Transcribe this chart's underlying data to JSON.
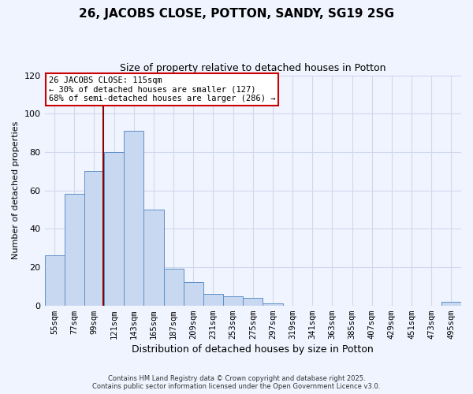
{
  "title": "26, JACOBS CLOSE, POTTON, SANDY, SG19 2SG",
  "subtitle": "Size of property relative to detached houses in Potton",
  "xlabel": "Distribution of detached houses by size in Potton",
  "ylabel": "Number of detached properties",
  "bar_color": "#c8d8f0",
  "bar_edge_color": "#6090c8",
  "categories": [
    "55sqm",
    "77sqm",
    "99sqm",
    "121sqm",
    "143sqm",
    "165sqm",
    "187sqm",
    "209sqm",
    "231sqm",
    "253sqm",
    "275sqm",
    "297sqm",
    "319sqm",
    "341sqm",
    "363sqm",
    "385sqm",
    "407sqm",
    "429sqm",
    "451sqm",
    "473sqm",
    "495sqm"
  ],
  "values": [
    26,
    58,
    70,
    80,
    91,
    50,
    19,
    12,
    6,
    5,
    4,
    1,
    0,
    0,
    0,
    0,
    0,
    0,
    0,
    0,
    2
  ],
  "ylim": [
    0,
    120
  ],
  "yticks": [
    0,
    20,
    40,
    60,
    80,
    100,
    120
  ],
  "vline_x": 2.45,
  "vline_color": "#880000",
  "annotation_title": "26 JACOBS CLOSE: 115sqm",
  "annotation_line1": "← 30% of detached houses are smaller (127)",
  "annotation_line2": "68% of semi-detached houses are larger (286) →",
  "footer1": "Contains HM Land Registry data © Crown copyright and database right 2025.",
  "footer2": "Contains public sector information licensed under the Open Government Licence v3.0.",
  "background_color": "#f0f4ff",
  "grid_color": "#d0d8ec"
}
